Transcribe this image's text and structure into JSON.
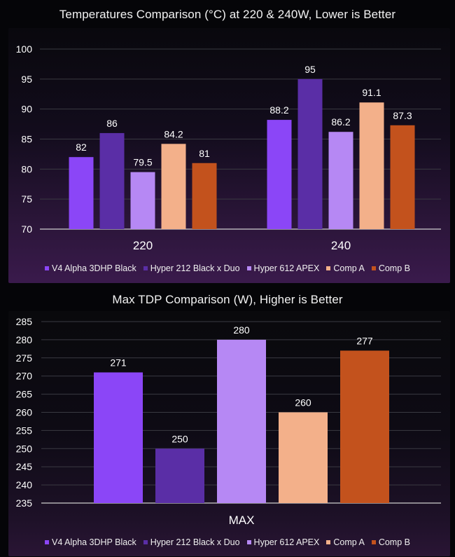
{
  "chart_data": [
    {
      "type": "bar",
      "title": "Temperatures Comparison (°C) at 220 & 240W, Lower is Better",
      "categories": [
        "220",
        "240"
      ],
      "series": [
        {
          "name": "V4 Alpha 3DHP Black",
          "values": [
            82,
            88.2
          ],
          "color": "#8b46f7"
        },
        {
          "name": "Hyper 212 Black x Duo",
          "values": [
            86,
            95
          ],
          "color": "#5a2ea6"
        },
        {
          "name": "Hyper 612 APEX",
          "values": [
            79.5,
            86.2
          ],
          "color": "#b688f4"
        },
        {
          "name": "Comp A",
          "values": [
            84.2,
            91.1
          ],
          "color": "#f3b08a"
        },
        {
          "name": "Comp B",
          "values": [
            81,
            87.3
          ],
          "color": "#c3521d"
        }
      ],
      "value_labels": [
        [
          "82",
          "86",
          "79.5",
          "84.2",
          "81"
        ],
        [
          "88.2",
          "95",
          "86.2",
          "91.1",
          "87.3"
        ]
      ],
      "yticks": [
        "70",
        "75",
        "80",
        "85",
        "90",
        "95",
        "100"
      ],
      "ylim": [
        70,
        100
      ],
      "xlabel": "",
      "ylabel": "",
      "grid": true,
      "legend_position": "bottom"
    },
    {
      "type": "bar",
      "title": "Max TDP Comparison (W), Higher is Better",
      "categories": [
        "MAX"
      ],
      "series": [
        {
          "name": "V4 Alpha 3DHP Black",
          "values": [
            271
          ],
          "color": "#8b46f7"
        },
        {
          "name": "Hyper 212 Black x Duo",
          "values": [
            250
          ],
          "color": "#5a2ea6"
        },
        {
          "name": "Hyper 612 APEX",
          "values": [
            280
          ],
          "color": "#b688f4"
        },
        {
          "name": "Comp A",
          "values": [
            260
          ],
          "color": "#f3b08a"
        },
        {
          "name": "Comp B",
          "values": [
            277
          ],
          "color": "#c3521d"
        }
      ],
      "value_labels": [
        [
          "271",
          "250",
          "280",
          "260",
          "277"
        ]
      ],
      "yticks": [
        "235",
        "240",
        "245",
        "250",
        "255",
        "260",
        "265",
        "270",
        "275",
        "280",
        "285"
      ],
      "ylim": [
        235,
        285
      ],
      "xlabel": "",
      "ylabel": "",
      "grid": true,
      "legend_position": "bottom"
    }
  ]
}
